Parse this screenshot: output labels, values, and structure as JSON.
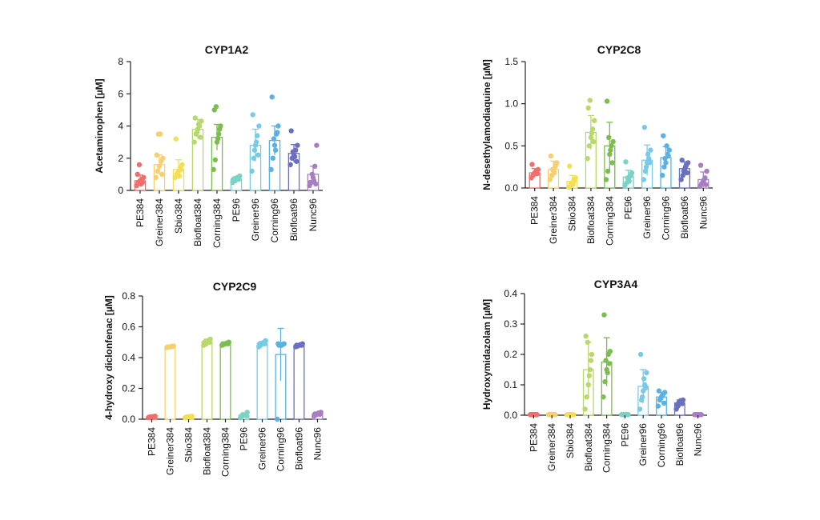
{
  "chart_data": [
    {
      "type": "bar",
      "title": "CYP1A2",
      "ylabel": "Acetaminophen [µM]",
      "ylim": [
        0,
        8
      ],
      "yticks": [
        "0",
        "2",
        "4",
        "6",
        "8"
      ],
      "categories": [
        "PE384",
        "Greiner384",
        "Sbio384",
        "Biofloat384",
        "Corning384",
        "PE96",
        "Greiner96",
        "Corning96",
        "Biofloat96",
        "Nunc96"
      ],
      "colors": [
        "#f26d6d",
        "#f8cf6f",
        "#f3df55",
        "#b7d86a",
        "#7cbd4f",
        "#7ad3c4",
        "#78cbe8",
        "#5ab1e3",
        "#6b6fc0",
        "#a87ec3"
      ],
      "values": [
        0.6,
        1.6,
        1.3,
        3.8,
        3.3,
        0.7,
        2.8,
        3.1,
        2.3,
        1.0
      ],
      "errors": [
        0.35,
        0.6,
        0.6,
        0.6,
        0.8,
        0.15,
        1.0,
        0.9,
        0.55,
        0.5
      ],
      "points": [
        [
          0.3,
          0.5,
          0.6,
          0.7,
          0.8,
          1.0,
          1.6,
          0.4,
          0.5
        ],
        [
          0.8,
          1.2,
          1.5,
          1.8,
          2.0,
          2.2,
          3.5,
          3.5,
          1.0
        ],
        [
          0.8,
          1.0,
          1.2,
          1.4,
          1.6,
          3.2,
          1.1,
          0.9,
          1.3
        ],
        [
          3.0,
          3.5,
          3.8,
          4.0,
          4.3,
          4.5,
          3.6,
          4.1,
          3.3
        ],
        [
          1.3,
          1.9,
          3.0,
          3.5,
          4.0,
          5.0,
          5.2,
          3.2,
          3.8
        ],
        [
          0.5,
          0.6,
          0.7,
          0.8,
          0.9,
          0.7,
          0.6,
          0.8,
          0.7
        ],
        [
          1.2,
          2.0,
          2.8,
          3.4,
          4.0,
          4.7,
          2.5,
          3.0,
          2.2
        ],
        [
          1.3,
          2.0,
          2.8,
          3.5,
          4.0,
          5.8,
          3.2,
          2.5,
          3.6
        ],
        [
          1.6,
          2.0,
          2.2,
          2.5,
          2.8,
          3.7,
          2.4,
          2.1,
          1.8
        ],
        [
          0.3,
          0.5,
          0.8,
          1.5,
          2.8,
          0.5,
          1.0,
          0.6,
          0.4
        ]
      ]
    },
    {
      "type": "bar",
      "title": "CYP2C8",
      "ylabel": "N-desethylamodiaquine [µM]",
      "ylim": [
        0,
        1.5
      ],
      "yticks": [
        "0.0",
        "0.5",
        "1.0",
        "1.5"
      ],
      "categories": [
        "PE384",
        "Greiner384",
        "Sbio384",
        "Biofloat384",
        "Corning384",
        "PE96",
        "Greiner96",
        "Corning96",
        "Biofloat96",
        "Nunc96"
      ],
      "colors": [
        "#f26d6d",
        "#f8cf6f",
        "#f3df55",
        "#b7d86a",
        "#7cbd4f",
        "#7ad3c4",
        "#78cbe8",
        "#5ab1e3",
        "#6b6fc0",
        "#a87ec3"
      ],
      "values": [
        0.18,
        0.22,
        0.08,
        0.66,
        0.5,
        0.13,
        0.33,
        0.36,
        0.23,
        0.1
      ],
      "errors": [
        0.05,
        0.1,
        0.07,
        0.2,
        0.28,
        0.08,
        0.18,
        0.13,
        0.08,
        0.09
      ],
      "points": [
        [
          0.12,
          0.15,
          0.18,
          0.2,
          0.22,
          0.28,
          0.16,
          0.19,
          0.17
        ],
        [
          0.1,
          0.15,
          0.2,
          0.25,
          0.3,
          0.38,
          0.22,
          0.18,
          0.28
        ],
        [
          0.01,
          0.03,
          0.05,
          0.08,
          0.12,
          0.26,
          0.06,
          0.04,
          0.1
        ],
        [
          0.35,
          0.5,
          0.6,
          0.7,
          0.8,
          0.95,
          1.04,
          0.65,
          0.55
        ],
        [
          0.1,
          0.2,
          0.4,
          0.5,
          0.55,
          1.03,
          0.6,
          0.45,
          0.3
        ],
        [
          0.03,
          0.06,
          0.1,
          0.14,
          0.18,
          0.31,
          0.12,
          0.08,
          0.15
        ],
        [
          0.1,
          0.2,
          0.3,
          0.35,
          0.45,
          0.72,
          0.25,
          0.4,
          0.3
        ],
        [
          0.15,
          0.25,
          0.3,
          0.4,
          0.45,
          0.62,
          0.35,
          0.5,
          0.38
        ],
        [
          0.1,
          0.15,
          0.22,
          0.27,
          0.3,
          0.33,
          0.2,
          0.25,
          0.18
        ],
        [
          0.02,
          0.05,
          0.08,
          0.12,
          0.2,
          0.27,
          0.06,
          0.1,
          0.04
        ]
      ]
    },
    {
      "type": "bar",
      "title": "CYP2C9",
      "ylabel": "4-hydroxy diclonfenac [µM]",
      "ylim": [
        0,
        0.8
      ],
      "yticks": [
        "0.0",
        "0.2",
        "0.4",
        "0.6",
        "0.8"
      ],
      "categories": [
        "PE384",
        "Greiner384",
        "Sbio384",
        "Biofloat384",
        "Corning384",
        "PE96",
        "Greiner96",
        "Corning96",
        "Biofloat96",
        "Nunc96"
      ],
      "colors": [
        "#f26d6d",
        "#f8cf6f",
        "#f3df55",
        "#b7d86a",
        "#7cbd4f",
        "#7ad3c4",
        "#78cbe8",
        "#5ab1e3",
        "#6b6fc0",
        "#a87ec3"
      ],
      "values": [
        0.015,
        0.47,
        0.015,
        0.5,
        0.49,
        0.025,
        0.49,
        0.42,
        0.48,
        0.035
      ],
      "errors": [
        0.005,
        0.005,
        0.005,
        0.02,
        0.01,
        0.015,
        0.015,
        0.17,
        0.01,
        0.01
      ],
      "points": [
        [
          0.01,
          0.012,
          0.015,
          0.018,
          0.02,
          0.014,
          0.016,
          0.013,
          0.017
        ],
        [
          0.465,
          0.468,
          0.47,
          0.472,
          0.475,
          0.47,
          0.469,
          0.471,
          0.473
        ],
        [
          0.01,
          0.012,
          0.015,
          0.018,
          0.02,
          0.014,
          0.016,
          0.013,
          0.017
        ],
        [
          0.48,
          0.49,
          0.5,
          0.51,
          0.52,
          0.5,
          0.49,
          0.51,
          0.5
        ],
        [
          0.48,
          0.485,
          0.49,
          0.495,
          0.5,
          0.49,
          0.488,
          0.492,
          0.49
        ],
        [
          0.01,
          0.02,
          0.025,
          0.03,
          0.045,
          0.02,
          0.03,
          0.025,
          0.022
        ],
        [
          0.47,
          0.48,
          0.49,
          0.5,
          0.51,
          0.49,
          0.485,
          0.495,
          0.49
        ],
        [
          0.0,
          0.48,
          0.48,
          0.485,
          0.49,
          0.49,
          0.485,
          0.48,
          0.487
        ],
        [
          0.47,
          0.475,
          0.48,
          0.485,
          0.49,
          0.48,
          0.478,
          0.482,
          0.48
        ],
        [
          0.02,
          0.03,
          0.035,
          0.04,
          0.045,
          0.035,
          0.03,
          0.04,
          0.032
        ]
      ]
    },
    {
      "type": "bar",
      "title": "CYP3A4",
      "ylabel": "Hydroxymidazolam [µM]",
      "ylim": [
        0,
        0.4
      ],
      "yticks": [
        "0.0",
        "0.1",
        "0.2",
        "0.3",
        "0.4"
      ],
      "categories": [
        "PE384",
        "Greiner384",
        "Sbio384",
        "Biofloat384",
        "Corning384",
        "PE96",
        "Greiner96",
        "Corning96",
        "Biofloat96",
        "Nunc96"
      ],
      "colors": [
        "#f26d6d",
        "#f8cf6f",
        "#f3df55",
        "#b7d86a",
        "#7cbd4f",
        "#7ad3c4",
        "#78cbe8",
        "#5ab1e3",
        "#6b6fc0",
        "#a87ec3"
      ],
      "values": [
        0.002,
        0.002,
        0.002,
        0.15,
        0.175,
        0.002,
        0.095,
        0.06,
        0.04,
        0.002
      ],
      "errors": [
        0.001,
        0.001,
        0.001,
        0.09,
        0.08,
        0.001,
        0.055,
        0.015,
        0.01,
        0.001
      ],
      "points": [
        [
          0.002,
          0.002,
          0.002,
          0.002,
          0.002,
          0.002,
          0.002,
          0.002,
          0.002
        ],
        [
          0.002,
          0.002,
          0.002,
          0.002,
          0.002,
          0.002,
          0.002,
          0.002,
          0.002
        ],
        [
          0.002,
          0.002,
          0.002,
          0.002,
          0.002,
          0.002,
          0.002,
          0.002,
          0.002
        ],
        [
          0.02,
          0.06,
          0.1,
          0.15,
          0.2,
          0.26,
          0.24,
          0.13,
          0.18
        ],
        [
          0.06,
          0.11,
          0.15,
          0.2,
          0.21,
          0.33,
          0.18,
          0.14,
          0.17
        ],
        [
          0.002,
          0.002,
          0.002,
          0.002,
          0.002,
          0.002,
          0.002,
          0.002,
          0.002
        ],
        [
          0.02,
          0.05,
          0.08,
          0.1,
          0.14,
          0.2,
          0.06,
          0.12,
          0.09
        ],
        [
          0.03,
          0.05,
          0.06,
          0.07,
          0.075,
          0.08,
          0.055,
          0.065,
          0.04
        ],
        [
          0.02,
          0.03,
          0.04,
          0.045,
          0.05,
          0.035,
          0.042,
          0.048,
          0.038
        ],
        [
          0.002,
          0.002,
          0.002,
          0.002,
          0.002,
          0.002,
          0.002,
          0.002,
          0.002
        ]
      ]
    }
  ]
}
